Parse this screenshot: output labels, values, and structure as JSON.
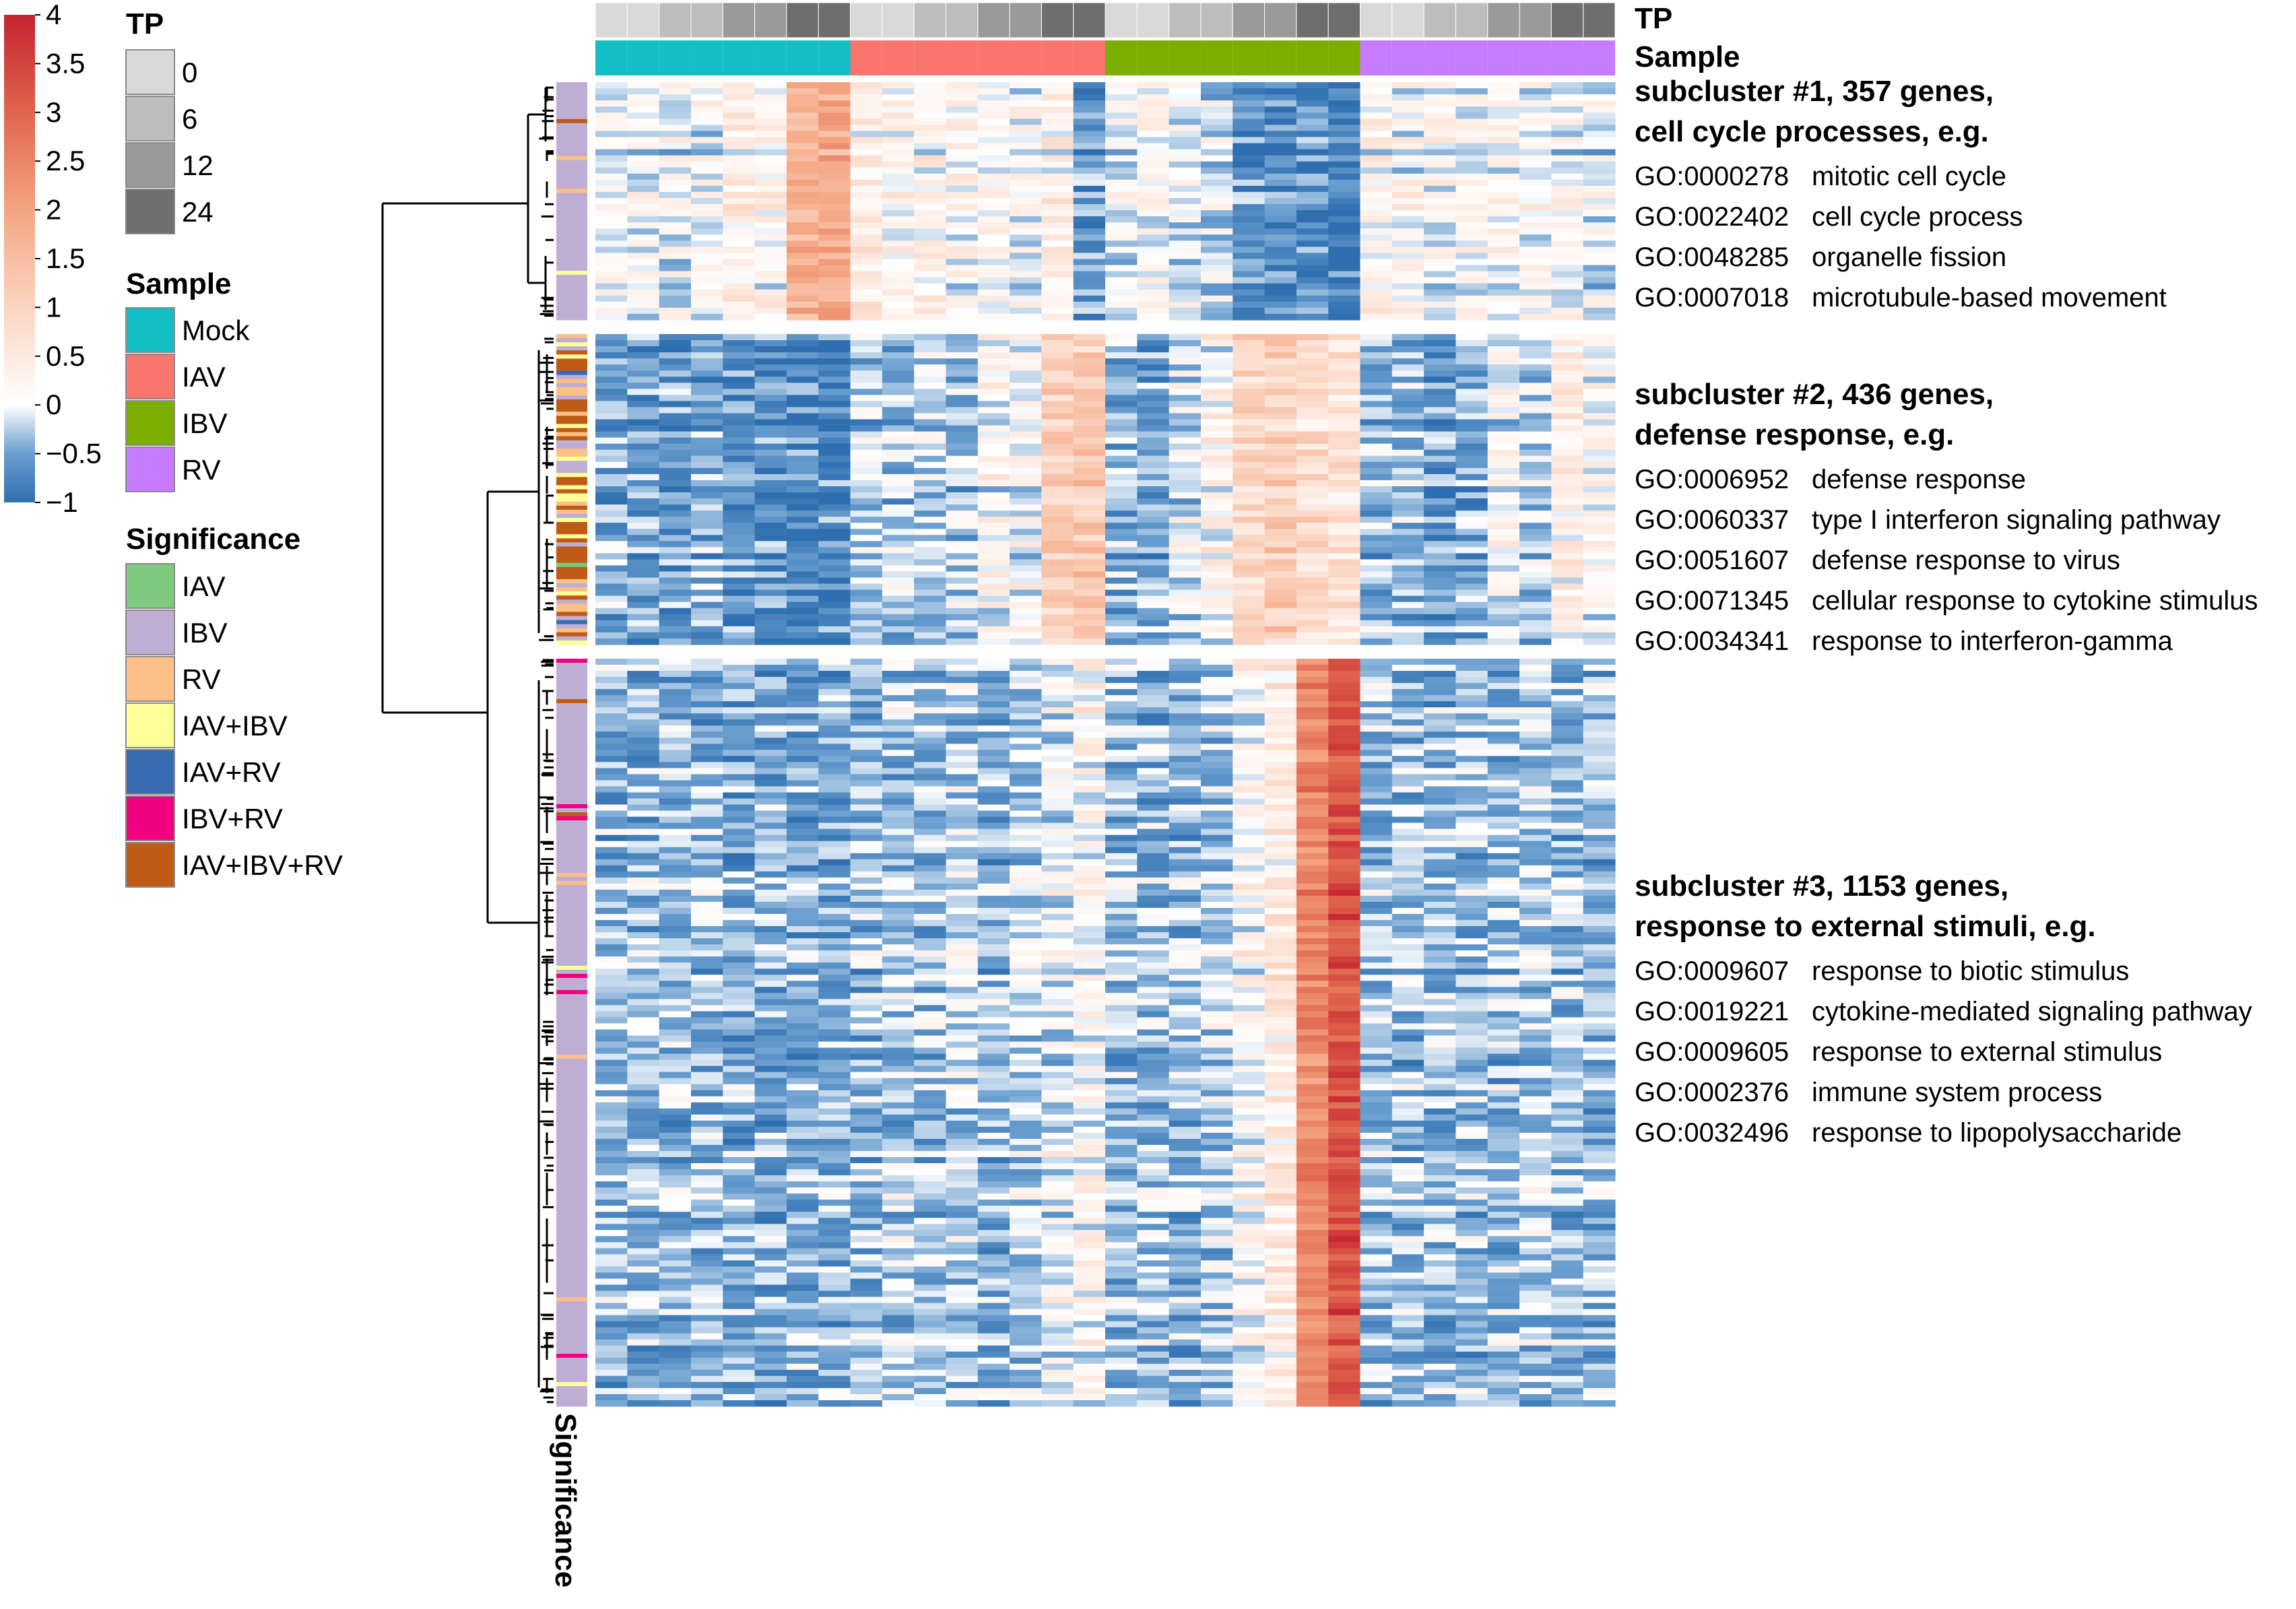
{
  "chart_data": {
    "type": "heatmap",
    "title": "",
    "color_scale": {
      "ticks": [
        "4",
        "3.5",
        "3",
        "2.5",
        "2",
        "1.5",
        "1",
        "0.5",
        "0",
        "−0.5",
        "−1"
      ],
      "min": -1,
      "max": 4,
      "colors": [
        "#2f6fb0",
        "#ffffff",
        "#c42330"
      ]
    },
    "columns": {
      "samples": [
        "Mock",
        "IAV",
        "IBV",
        "RV"
      ],
      "time_points": [
        0,
        6,
        12,
        24
      ],
      "replicates_per_group": 2
    },
    "annotations": {
      "tp": {
        "label": "TP",
        "levels": [
          "0",
          "6",
          "12",
          "24"
        ],
        "colors": [
          "#d9d9d9",
          "#bdbdbd",
          "#9a9a9a",
          "#6e6e6e"
        ]
      },
      "sample": {
        "label": "Sample",
        "levels": [
          "Mock",
          "IAV",
          "IBV",
          "RV"
        ],
        "colors": [
          "#13bfc4",
          "#f8766d",
          "#7cae00",
          "#c77cff"
        ]
      },
      "significance": {
        "label": "Significance",
        "levels": [
          "IAV",
          "IBV",
          "RV",
          "IAV+IBV",
          "IAV+RV",
          "IBV+RV",
          "IAV+IBV+RV"
        ],
        "colors": [
          "#7fc97f",
          "#beaed4",
          "#fdc086",
          "#ffff99",
          "#386cb0",
          "#f0027f",
          "#bf5b17"
        ]
      }
    },
    "subclusters": [
      {
        "id": 1,
        "genes": 357,
        "title_line1": "subcluster #1, 357 genes,",
        "title_line2": "cell cycle processes, e.g.",
        "go_terms": [
          {
            "id": "GO:0000278",
            "term": "mitotic cell cycle"
          },
          {
            "id": "GO:0022402",
            "term": "cell cycle process"
          },
          {
            "id": "GO:0048285",
            "term": "organelle fission"
          },
          {
            "id": "GO:0007018",
            "term": "microtubule-based movement"
          }
        ],
        "column_means": [
          0.0,
          -0.1,
          -0.1,
          0.0,
          0.3,
          0.2,
          1.6,
          1.8,
          0.3,
          0.1,
          0.2,
          0.1,
          0.1,
          0.0,
          0.3,
          -0.6,
          -0.1,
          0.0,
          -0.1,
          -0.2,
          -0.7,
          -0.8,
          -0.8,
          -0.9,
          0.2,
          0.1,
          0.0,
          0.0,
          0.1,
          0.1,
          0.0,
          -0.1
        ]
      },
      {
        "id": 2,
        "genes": 436,
        "title_line1": "subcluster #2, 436 genes,",
        "title_line2": "defense response, e.g.",
        "go_terms": [
          {
            "id": "GO:0006952",
            "term": "defense response"
          },
          {
            "id": "GO:0060337",
            "term": "type I interferon signaling pathway"
          },
          {
            "id": "GO:0051607",
            "term": "defense response to virus"
          },
          {
            "id": "GO:0071345",
            "term": "cellular response to cytokine stimulus"
          },
          {
            "id": "GO:0034341",
            "term": "response to interferon-gamma"
          }
        ],
        "column_means": [
          -0.5,
          -0.5,
          -0.6,
          -0.5,
          -0.7,
          -0.7,
          -0.8,
          -0.8,
          -0.3,
          -0.3,
          -0.2,
          -0.3,
          0.1,
          0.0,
          1.0,
          1.2,
          -0.4,
          -0.5,
          -0.1,
          0.2,
          0.9,
          1.1,
          0.8,
          0.6,
          -0.4,
          -0.4,
          -0.6,
          -0.5,
          0.0,
          -0.2,
          0.3,
          0.1
        ]
      },
      {
        "id": 3,
        "genes": 1153,
        "title_line1": "subcluster #3, 1153 genes,",
        "title_line2": "response to external stimuli, e.g.",
        "go_terms": [
          {
            "id": "GO:0009607",
            "term": "response to biotic stimulus"
          },
          {
            "id": "GO:0019221",
            "term": "cytokine-mediated signaling pathway"
          },
          {
            "id": "GO:0009605",
            "term": "response to external stimulus"
          },
          {
            "id": "GO:0002376",
            "term": "immune system process"
          },
          {
            "id": "GO:0032496",
            "term": "response to lipopolysaccharide"
          }
        ],
        "column_means": [
          -0.3,
          -0.3,
          -0.3,
          -0.3,
          -0.4,
          -0.4,
          -0.4,
          -0.4,
          -0.3,
          -0.2,
          -0.3,
          -0.2,
          -0.3,
          -0.2,
          0.0,
          0.2,
          -0.3,
          -0.3,
          -0.3,
          -0.2,
          0.2,
          0.5,
          2.5,
          3.3,
          -0.3,
          -0.3,
          -0.3,
          -0.3,
          -0.3,
          -0.2,
          -0.3,
          -0.3
        ]
      }
    ],
    "significance_axis_label": "Significance"
  }
}
